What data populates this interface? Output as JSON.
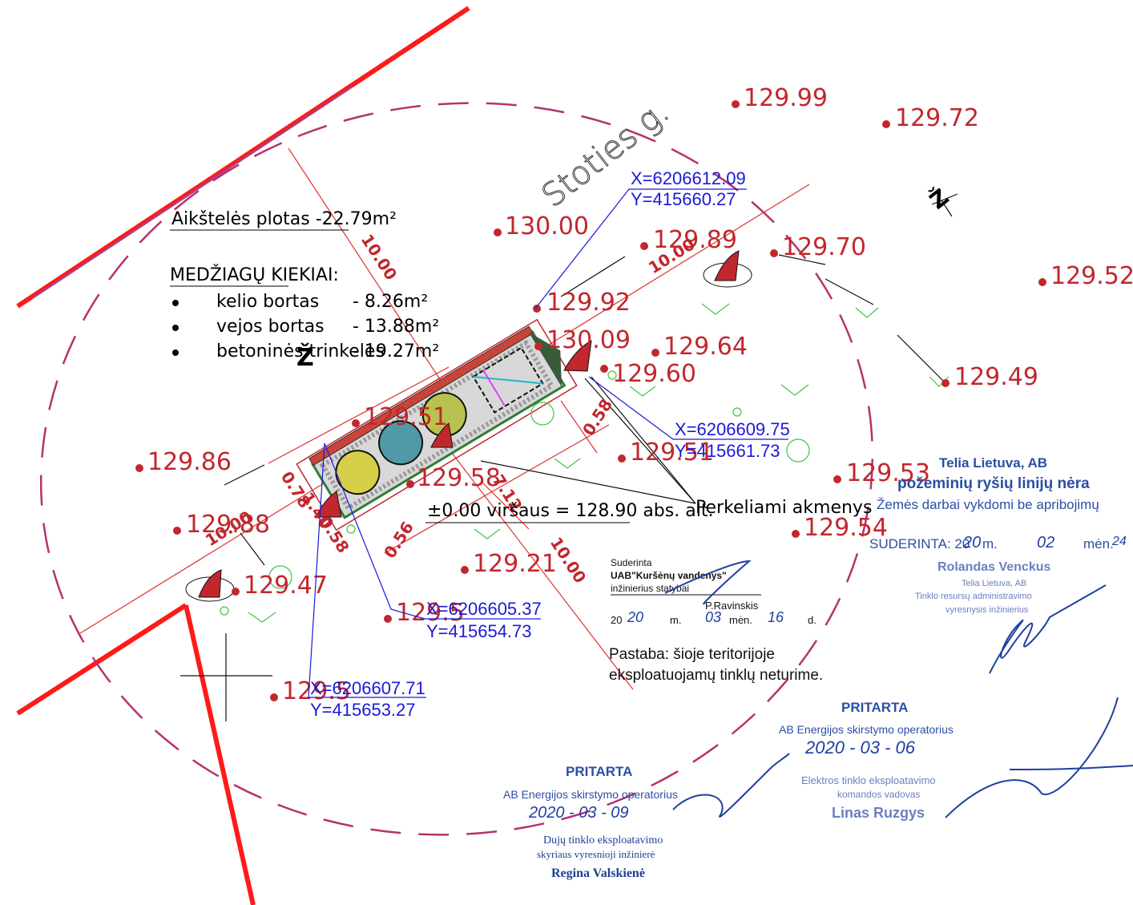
{
  "street_name": "Stoties g.",
  "area_label": "Aikštelės plotas  -22.79m²",
  "materials": {
    "heading": "MEDŽIAGŲ KIEKIAI:",
    "items": [
      {
        "name": "kelio bortas",
        "value": "- 8.26m²"
      },
      {
        "name": "vejos bortas",
        "value": "- 13.88m²"
      },
      {
        "name": "betoninės trinkelės",
        "value": "- 19.27m²"
      }
    ]
  },
  "elevations": [
    "129.99",
    "129.72",
    "130.00",
    "129.89",
    "129.70",
    "129.52",
    "129.92",
    "130.09",
    "129.64",
    "129.60",
    "129.49",
    "129.86",
    "129.58",
    "129.53",
    "129.88",
    "129.54",
    "129.21",
    "129.47",
    "129.51",
    "129.51",
    "129.5"
  ],
  "coordinates": [
    {
      "x": "X=6206612.09",
      "y": "Y=415660.27"
    },
    {
      "x": "X=6206609.75",
      "y": "Y=415661.73"
    },
    {
      "x": "X=6206605.37",
      "y": "Y=415654.73"
    },
    {
      "x": "X=6206607.71",
      "y": "Y=415653.27"
    }
  ],
  "dimensions": [
    "10.00",
    "10.00",
    "10.00",
    "10.00",
    "0.58",
    "0.78",
    "1.40",
    "0.58",
    "7.12",
    "0.56"
  ],
  "level_label": "±0.00 viršaus = 128.90 abs. alt.",
  "stones_label": "Perkeliami akmenys",
  "north_label": "Ž",
  "stamp_telia": {
    "company": "Telia Lietuva, AB",
    "line1": "požeminių ryšių linijų nėra",
    "line2": "Žemės darbai vykdomi be apribojimų",
    "agreed": "SUDERINTA: 20",
    "agreed_year": "20",
    "agreed_m": "m.",
    "agreed_month": "02",
    "agreed_men": "mėn.",
    "agreed_day": "24",
    "name": "Rolandas Venckus",
    "org": "Telia Lietuva, AB",
    "position1": "Tinklo resursų administravimo",
    "position2": "vyresnysis inžinierius"
  },
  "stamp_water": {
    "l1": "Suderinta",
    "l2": "UAB\"Kuršėnų vandenys\"",
    "l3": "inžinierius statybai",
    "signer": "P.Ravinskis",
    "date_prefix": "20",
    "year": "20",
    "m": "m.",
    "month": "03",
    "men": "mėn.",
    "day": "16",
    "d": "d."
  },
  "note": {
    "l1": "Pastaba: šioje teritorijoje",
    "l2": "eksploatuojamų tinklų neturime."
  },
  "stamp_energy1": {
    "title": "PRITARTA",
    "org": "AB Energijos skirstymo operatorius",
    "date": "2020 - 03 - 06",
    "dept1": "Elektros tinklo eksploatavimo",
    "dept2": "komandos vadovas",
    "name": "Linas Ruzgys"
  },
  "stamp_energy2": {
    "title": "PRITARTA",
    "org": "AB Energijos skirstymo operatorius",
    "date": "2020 - 03 - 09",
    "dept1": "Dujų tinklo eksploatavimo",
    "dept2": "skyriaus vyresnioji inžinierė",
    "name": "Regina Valskienė"
  },
  "colors": {
    "elevation": "#c1272d",
    "coordinate": "#1a1ad8",
    "boundary": "#ff0000",
    "circle": "#b5326e",
    "stamp": "#2a4fa3"
  }
}
